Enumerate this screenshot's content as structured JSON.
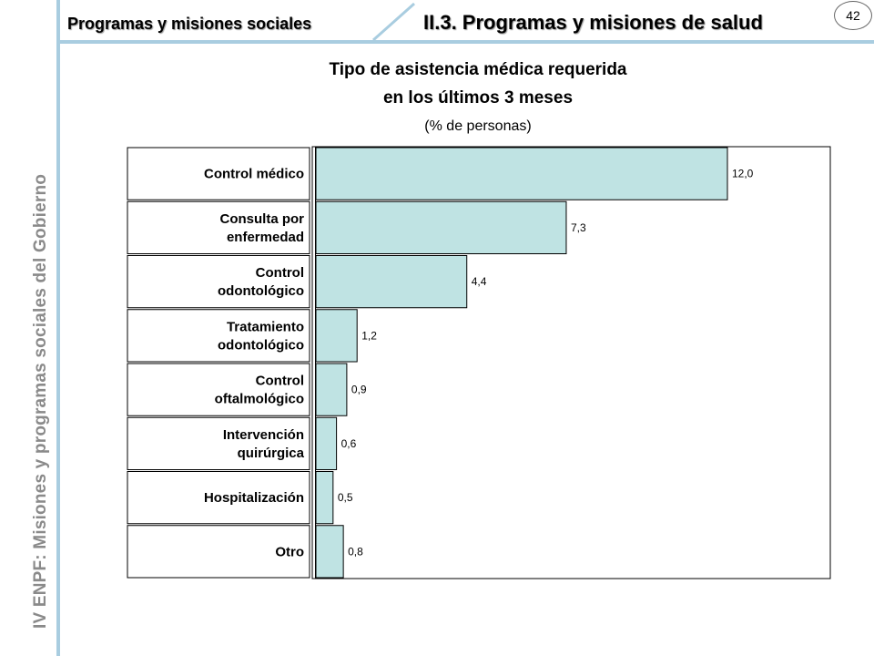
{
  "header": {
    "section": "Programas y misiones sociales",
    "chapter": "II.3. Programas y misiones de salud",
    "page_number": "42"
  },
  "sidebar": {
    "text": "IV ENPF:  Misiones y programas sociales del Gobierno"
  },
  "colors": {
    "accent": "#a9cde0",
    "bar_fill": "#bfe3e3"
  },
  "chart_data": {
    "type": "bar",
    "orientation": "horizontal",
    "title_line_1": "Tipo de asistencia médica requerida",
    "title_line_2": "en los últimos 3 meses",
    "subtitle": "(% de personas)",
    "categories": [
      [
        "Control médico"
      ],
      [
        "Consulta por",
        "enfermedad"
      ],
      [
        "Control",
        "odontológico"
      ],
      [
        "Tratamiento",
        "odontológico"
      ],
      [
        "Control",
        "oftalmológico"
      ],
      [
        "Intervención",
        "quirúrgica"
      ],
      [
        "Hospitalización"
      ],
      [
        "Otro"
      ]
    ],
    "values": [
      12.0,
      7.3,
      4.4,
      1.2,
      0.9,
      0.6,
      0.5,
      0.8
    ],
    "value_labels": [
      "12,0",
      "7,3",
      "4,4",
      "1,2",
      "0,9",
      "0,6",
      "0,5",
      "0,8"
    ],
    "xlim": [
      0,
      12.0
    ]
  }
}
